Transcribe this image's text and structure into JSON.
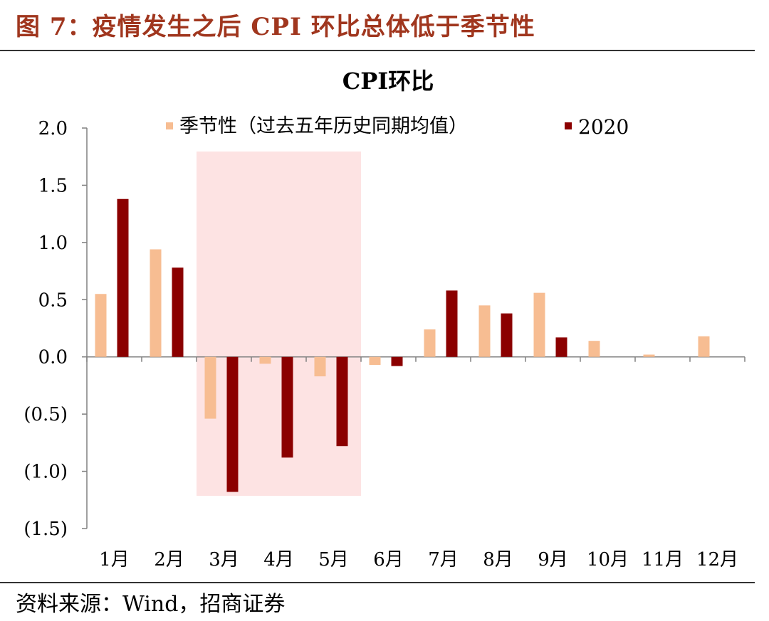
{
  "figure_title": "图 7：疫情发生之后 CPI 环比总体低于季节性",
  "source": "资料来源：Wind，招商证券",
  "chart_data": {
    "type": "bar",
    "title": "CPI环比",
    "categories": [
      "1月",
      "2月",
      "3月",
      "4月",
      "5月",
      "6月",
      "7月",
      "8月",
      "9月",
      "10月",
      "11月",
      "12月"
    ],
    "series": [
      {
        "name": "季节性（过去五年历史同期均值）",
        "color": "#f7bd92",
        "values": [
          0.55,
          0.94,
          -0.54,
          -0.06,
          -0.17,
          -0.07,
          0.24,
          0.45,
          0.56,
          0.14,
          0.02,
          0.18
        ]
      },
      {
        "name": "2020",
        "color": "#8b0000",
        "values": [
          1.38,
          0.78,
          -1.18,
          -0.88,
          -0.78,
          -0.08,
          0.58,
          0.38,
          0.17,
          null,
          null,
          null
        ]
      }
    ],
    "ylim": [
      -1.5,
      2.0
    ],
    "yticks": [
      2.0,
      1.5,
      1.0,
      0.5,
      0.0,
      -0.5,
      -1.0,
      -1.5
    ],
    "ytick_labels": [
      "2.0",
      "1.5",
      "1.0",
      "0.5",
      "0.0",
      "(0.5)",
      "(1.0)",
      "(1.5)"
    ],
    "highlight": {
      "from_category": "3月",
      "to_category": "5月",
      "color": "#fde3e3"
    },
    "legend_position": "top",
    "grid": false
  }
}
